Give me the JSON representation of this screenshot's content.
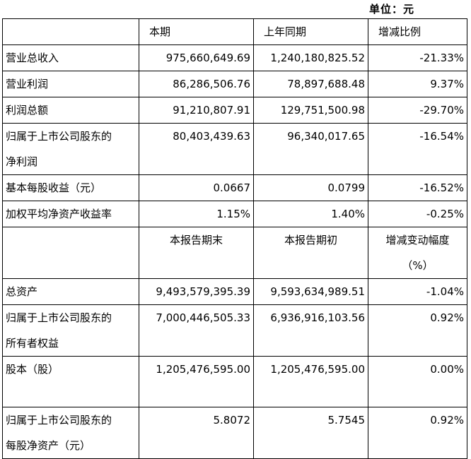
{
  "unit_label": "单位：元",
  "headers1": [
    "",
    "本期",
    "上年同期",
    "增减比例"
  ],
  "rows1": [
    {
      "label": "营业总收入",
      "values": [
        "975,660,649.69",
        "1,240,180,825.52",
        "-21.33%"
      ]
    },
    {
      "label": "营业利润",
      "values": [
        "86,286,506.76",
        "78,897,688.48",
        "9.37%"
      ]
    },
    {
      "label": "利润总额",
      "values": [
        "91,210,807.91",
        "129,751,500.98",
        "-29.70%"
      ]
    },
    {
      "label_line1": "归属于上市公司股东的",
      "label_line2": "净利润",
      "values": [
        "80,403,439.63",
        "96,340,017.65",
        "-16.54%"
      ]
    },
    {
      "label": "基本每股收益（元）",
      "values": [
        "0.0667",
        "0.0799",
        "-16.52%"
      ]
    },
    {
      "label": "加权平均净资产收益率",
      "values": [
        "1.15%",
        "1.40%",
        "-0.25%"
      ]
    }
  ],
  "headers2": [
    "",
    "本报告期末",
    "本报告期初",
    "增减变动幅度",
    "（%）"
  ],
  "rows2": [
    {
      "label": "总资产",
      "values": [
        "9,493,579,395.39",
        "9,593,634,989.51",
        "-1.04%"
      ]
    },
    {
      "label_line1": "归属于上市公司股东的",
      "label_line2": "所有者权益",
      "values": [
        "7,000,446,505.33",
        "6,936,916,103.56",
        "0.92%"
      ]
    },
    {
      "label": "股本（股）",
      "values": [
        "1,205,476,595.00",
        "1,205,476,595.00",
        "0.00%"
      ]
    },
    {
      "label_line1": "归属于上市公司股东的",
      "label_line2": "每股净资产（元）",
      "values": [
        "5.8072",
        "5.7545",
        "0.92%"
      ]
    }
  ]
}
